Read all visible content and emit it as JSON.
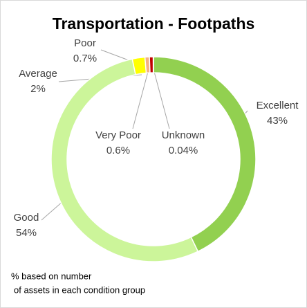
{
  "chart_data": {
    "type": "donut",
    "title": "Transportation - Footpaths",
    "categories": [
      "Excellent",
      "Good",
      "Average",
      "Poor",
      "Very Poor",
      "Unknown"
    ],
    "values": [
      43,
      54,
      2,
      0.7,
      0.6,
      0.04
    ],
    "value_labels": [
      "43%",
      "54%",
      "2%",
      "0.7%",
      "0.6%",
      "0.04%"
    ],
    "colors": [
      "#92d050",
      "#ccf59a",
      "#ffff00",
      "#f4b183",
      "#c00000",
      "#7f7f7f"
    ],
    "note": [
      "% based on number",
      "of assets in each condition group"
    ]
  }
}
